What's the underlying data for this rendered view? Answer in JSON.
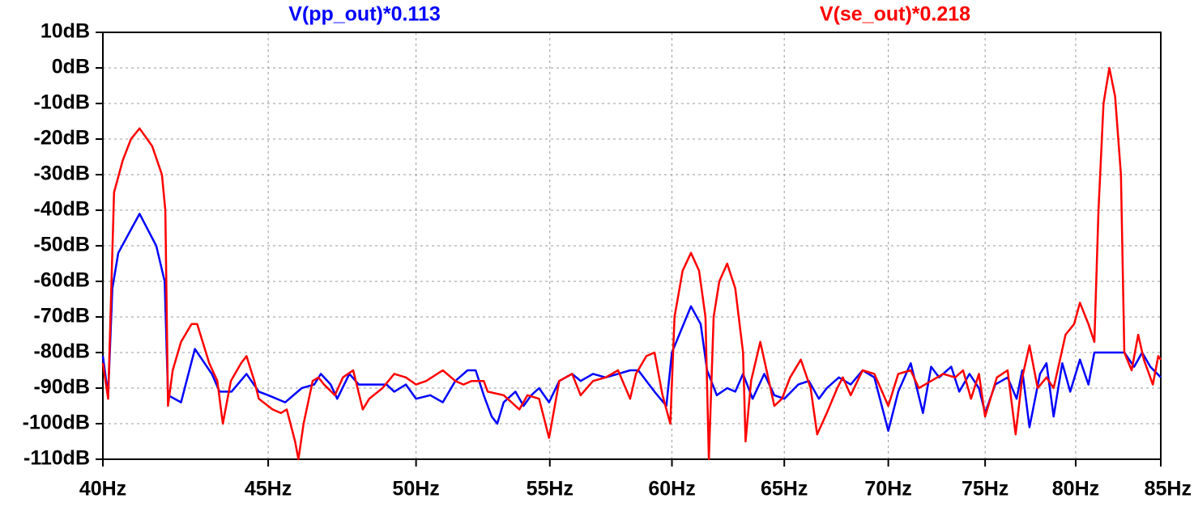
{
  "chart_data": {
    "type": "line",
    "xlog": true,
    "grid": true,
    "xlim": [
      40,
      85
    ],
    "ylim": [
      -110,
      10
    ],
    "xticks": [
      {
        "value": 40,
        "label": "40Hz"
      },
      {
        "value": 45,
        "label": "45Hz"
      },
      {
        "value": 50,
        "label": "50Hz"
      },
      {
        "value": 55,
        "label": "55Hz"
      },
      {
        "value": 60,
        "label": "60Hz"
      },
      {
        "value": 65,
        "label": "65Hz"
      },
      {
        "value": 70,
        "label": "70Hz"
      },
      {
        "value": 75,
        "label": "75Hz"
      },
      {
        "value": 80,
        "label": "80Hz"
      },
      {
        "value": 85,
        "label": "85Hz"
      }
    ],
    "yticks": [
      {
        "value": 10,
        "label": "10dB"
      },
      {
        "value": 0,
        "label": "0dB"
      },
      {
        "value": -10,
        "label": "-10dB"
      },
      {
        "value": -20,
        "label": "-20dB"
      },
      {
        "value": -30,
        "label": "-30dB"
      },
      {
        "value": -40,
        "label": "-40dB"
      },
      {
        "value": -50,
        "label": "-50dB"
      },
      {
        "value": -60,
        "label": "-60dB"
      },
      {
        "value": -70,
        "label": "-70dB"
      },
      {
        "value": -80,
        "label": "-80dB"
      },
      {
        "value": -90,
        "label": "-90dB"
      },
      {
        "value": -100,
        "label": "-100dB"
      },
      {
        "value": -110,
        "label": "-110dB"
      }
    ],
    "series": [
      {
        "name": "V(pp_out)*0.113",
        "color": "#0000ff",
        "x": [
          40.0,
          40.15,
          40.27,
          40.44,
          41.06,
          41.55,
          41.8,
          41.9,
          42.29,
          42.71,
          43.23,
          43.47,
          43.84,
          44.31,
          44.7,
          45.0,
          45.55,
          46.09,
          46.5,
          46.72,
          47.05,
          47.27,
          47.68,
          48.0,
          48.55,
          48.96,
          49.23,
          49.64,
          50.0,
          50.51,
          50.96,
          51.42,
          51.87,
          52.17,
          52.47,
          52.77,
          52.98,
          53.22,
          53.67,
          53.98,
          54.28,
          54.58,
          54.97,
          55.37,
          55.88,
          56.22,
          56.72,
          57.23,
          57.74,
          58.24,
          58.58,
          58.92,
          59.26,
          59.76,
          60.0,
          60.82,
          61.24,
          61.52,
          61.95,
          62.41,
          62.77,
          63.12,
          63.55,
          64.08,
          64.54,
          65.0,
          65.65,
          66.15,
          66.62,
          67.0,
          67.58,
          68.15,
          68.73,
          69.31,
          70.0,
          70.5,
          71.13,
          71.75,
          72.17,
          72.58,
          73.21,
          73.63,
          74.17,
          74.67,
          75.0,
          75.54,
          76.21,
          76.7,
          77.01,
          77.41,
          77.99,
          78.35,
          78.75,
          79.24,
          79.69,
          80.24,
          80.73,
          81.07,
          82.82,
          83.4,
          83.88,
          84.37,
          85.0
        ],
        "values": [
          -81,
          -92,
          -62,
          -52,
          -41,
          -50,
          -60,
          -92,
          -94,
          -79,
          -86,
          -91,
          -91,
          -86,
          -91,
          -92,
          -94,
          -90,
          -89,
          -86,
          -89,
          -93,
          -86,
          -89,
          -89,
          -89,
          -91,
          -89,
          -93,
          -92,
          -94,
          -88,
          -85,
          -85,
          -92,
          -98,
          -100,
          -94,
          -91,
          -95,
          -92,
          -90,
          -94,
          -88,
          -86,
          -88,
          -86,
          -87,
          -86,
          -85,
          -85,
          -88,
          -91,
          -95,
          -80,
          -67,
          -72,
          -85,
          -92,
          -90,
          -91,
          -86,
          -93,
          -86,
          -92,
          -93,
          -89,
          -88,
          -93,
          -90,
          -87,
          -89,
          -85,
          -87,
          -102,
          -91,
          -83,
          -97,
          -84,
          -87,
          -84,
          -91,
          -86,
          -90,
          -97,
          -89,
          -87,
          -93,
          -85,
          -101,
          -86,
          -83,
          -98,
          -83,
          -91,
          -82,
          -89,
          -80,
          -80,
          -84,
          -80,
          -84,
          -87
        ]
      },
      {
        "name": "V(se_out)*0.218",
        "color": "#ff0000",
        "x": [
          40.0,
          40.15,
          40.32,
          40.57,
          40.81,
          41.06,
          41.43,
          41.72,
          41.82,
          41.9,
          42.04,
          42.29,
          42.61,
          42.78,
          43.15,
          43.4,
          43.57,
          43.82,
          44.14,
          44.31,
          44.56,
          44.7,
          45.14,
          45.41,
          45.6,
          45.87,
          45.98,
          46.15,
          46.45,
          46.64,
          46.83,
          47.19,
          47.46,
          47.81,
          48.14,
          48.36,
          48.82,
          49.23,
          49.64,
          50.0,
          50.36,
          50.96,
          51.42,
          51.72,
          52.02,
          52.47,
          52.62,
          53.22,
          53.52,
          53.82,
          54.13,
          54.58,
          54.97,
          55.37,
          55.88,
          56.22,
          56.72,
          57.23,
          57.74,
          58.24,
          58.48,
          58.92,
          59.26,
          59.6,
          59.93,
          60.11,
          60.46,
          60.82,
          61.17,
          61.45,
          61.6,
          61.81,
          62.06,
          62.41,
          62.77,
          63.12,
          63.23,
          63.48,
          63.9,
          64.29,
          64.54,
          64.89,
          65.27,
          65.77,
          66.23,
          66.54,
          67.0,
          67.5,
          67.77,
          68.15,
          68.73,
          69.31,
          70.0,
          70.5,
          71.13,
          71.54,
          72.17,
          72.79,
          73.42,
          73.83,
          74.25,
          74.67,
          75.0,
          75.63,
          76.21,
          76.65,
          77.01,
          77.41,
          77.86,
          78.35,
          78.75,
          79.11,
          79.42,
          79.91,
          80.24,
          80.73,
          81.07,
          81.31,
          81.6,
          81.94,
          82.28,
          82.62,
          82.82,
          83.25,
          83.64,
          83.98,
          84.52,
          84.85,
          85.0
        ],
        "values": [
          -83,
          -93,
          -35,
          -26,
          -20,
          -17,
          -22,
          -30,
          -40,
          -95,
          -85,
          -77,
          -72,
          -72,
          -83,
          -88,
          -100,
          -88,
          -83,
          -81,
          -88,
          -93,
          -96,
          -97,
          -96,
          -105,
          -110,
          -100,
          -88,
          -87,
          -89,
          -92,
          -87,
          -85,
          -96,
          -93,
          -90,
          -86,
          -87,
          -89,
          -88,
          -85,
          -88,
          -89,
          -88,
          -88,
          -91,
          -92,
          -94,
          -96,
          -92,
          -93,
          -104,
          -88,
          -86,
          -92,
          -88,
          -87,
          -85,
          -93,
          -86,
          -81,
          -80,
          -92,
          -100,
          -70,
          -57,
          -52,
          -57,
          -70,
          -110,
          -70,
          -60,
          -55,
          -62,
          -80,
          -105,
          -88,
          -77,
          -88,
          -95,
          -93,
          -87,
          -82,
          -90,
          -103,
          -97,
          -90,
          -87,
          -92,
          -85,
          -86,
          -95,
          -86,
          -85,
          -90,
          -88,
          -86,
          -87,
          -85,
          -93,
          -86,
          -98,
          -87,
          -85,
          -103,
          -87,
          -78,
          -90,
          -87,
          -90,
          -82,
          -75,
          -72,
          -66,
          -72,
          -77,
          -40,
          -10,
          0,
          -8,
          -30,
          -80,
          -85,
          -75,
          -82,
          -89,
          -81,
          -82
        ]
      }
    ]
  }
}
